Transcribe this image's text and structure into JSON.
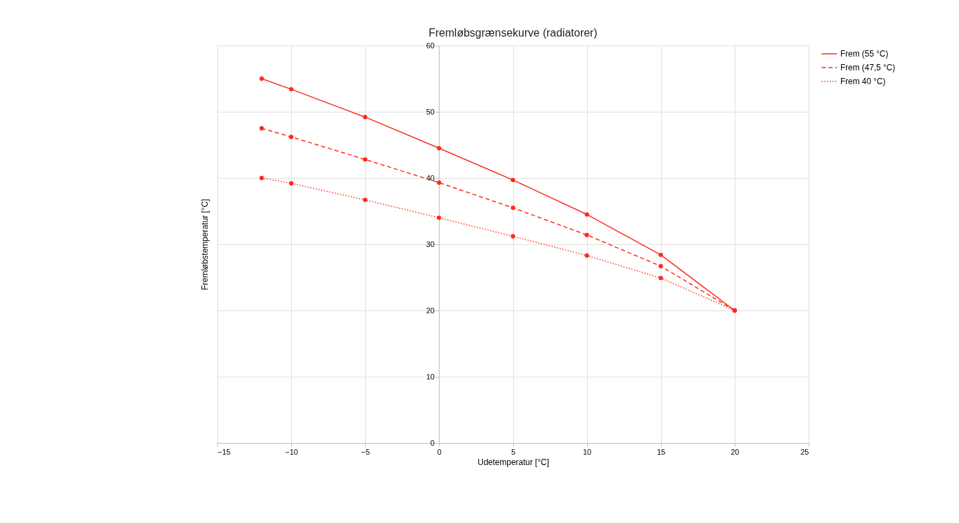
{
  "chart_data": {
    "type": "line",
    "title": "Fremløbsgrænsekurve (radiatorer)",
    "xlabel": "Udetemperatur [°C]",
    "ylabel": "Fremløbstemperatur [°C]",
    "x": [
      -12,
      -10,
      -5,
      0,
      5,
      10,
      15,
      20
    ],
    "series": [
      {
        "name": "Frem (55 °C)",
        "color": "#ff2a1a",
        "line_style": "solid",
        "values": [
          55,
          53.4,
          49.2,
          44.5,
          39.7,
          34.5,
          28.4,
          20
        ]
      },
      {
        "name": "Frem (47,5 °C)",
        "color": "#ff2a1a",
        "line_style": "dashed",
        "values": [
          47.5,
          46.2,
          42.8,
          39.3,
          35.5,
          31.4,
          26.7,
          20
        ]
      },
      {
        "name": "Frem 40 °C)",
        "color": "#ff2a1a",
        "line_style": "dotted",
        "values": [
          40,
          39.2,
          36.7,
          34.0,
          31.2,
          28.3,
          24.9,
          20
        ]
      }
    ],
    "xlim": [
      -15,
      25
    ],
    "xticks": [
      -15,
      -10,
      -5,
      0,
      5,
      10,
      15,
      20,
      25
    ],
    "ylim": [
      0,
      60
    ],
    "yticks": [
      0,
      10,
      20,
      30,
      40,
      50,
      60
    ],
    "grid": true,
    "legend": "right",
    "marker": "circle"
  }
}
